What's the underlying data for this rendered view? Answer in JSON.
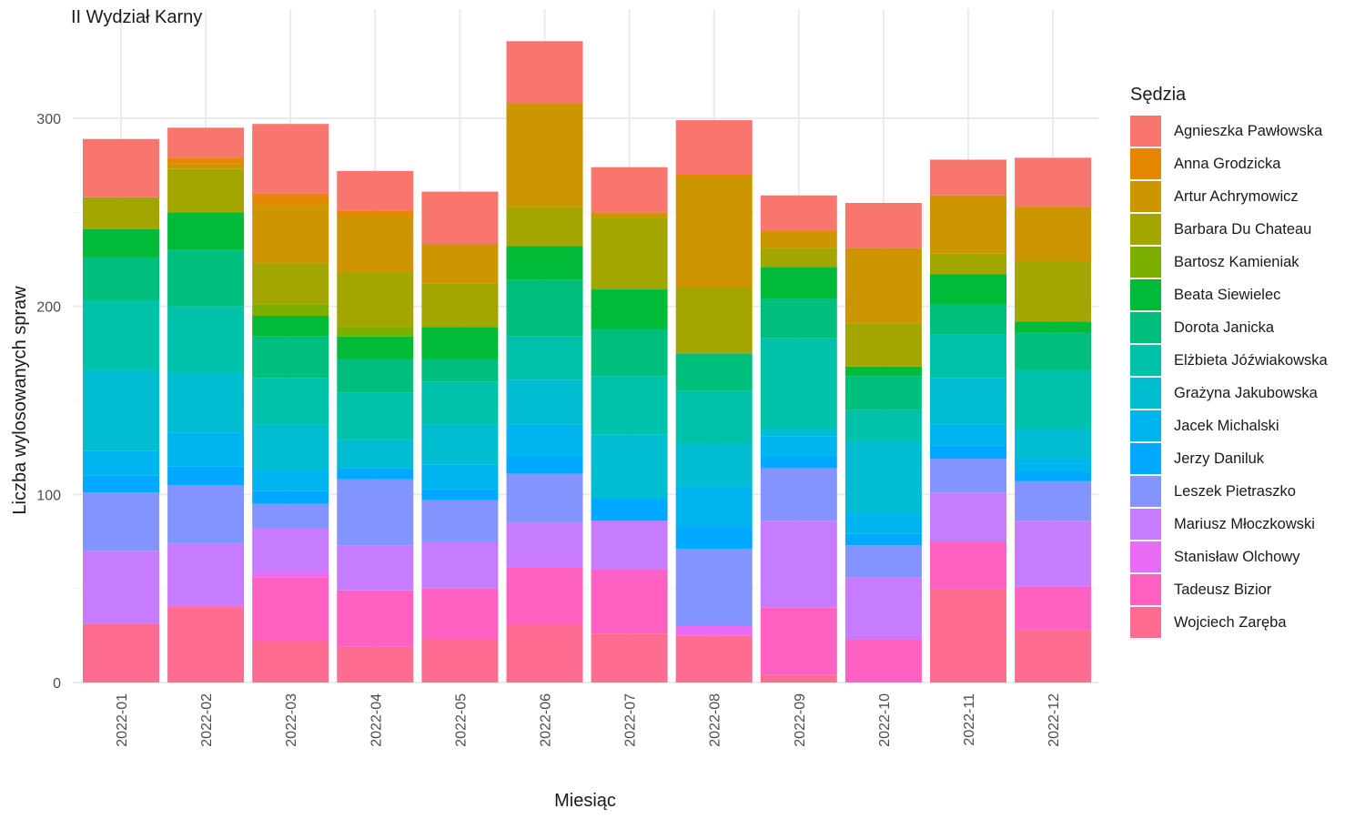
{
  "chart_data": {
    "type": "bar",
    "stacked": true,
    "title": "II Wydział Karny",
    "xlabel": "Miesiąc",
    "ylabel": "Liczba wylosowanych spraw",
    "legend_title": "Sędzia",
    "legend_position": "right",
    "grid": true,
    "ylim": [
      0,
      350
    ],
    "yticks": [
      0,
      100,
      200,
      300
    ],
    "categories": [
      "2022-01",
      "2022-02",
      "2022-03",
      "2022-04",
      "2022-05",
      "2022-06",
      "2022-07",
      "2022-08",
      "2022-09",
      "2022-10",
      "2022-11",
      "2022-12"
    ],
    "series": [
      {
        "name": "Wojciech Zaręba",
        "color": "#FF6C91",
        "values": [
          31,
          40,
          22,
          19,
          23,
          31,
          26,
          25,
          4,
          0,
          50,
          28
        ]
      },
      {
        "name": "Tadeusz Bizior",
        "color": "#FF61C3",
        "values": [
          0,
          1,
          34,
          30,
          27,
          30,
          34,
          0,
          36,
          23,
          25,
          23
        ]
      },
      {
        "name": "Stanisław Olchowy",
        "color": "#E76BF3",
        "values": [
          0,
          0,
          3,
          0,
          0,
          0,
          0,
          5,
          0,
          0,
          0,
          0
        ]
      },
      {
        "name": "Mariusz Młoczkowski",
        "color": "#C77CFF",
        "values": [
          39,
          33,
          23,
          24,
          25,
          24,
          26,
          0,
          46,
          33,
          26,
          35
        ]
      },
      {
        "name": "Leszek Pietraszko",
        "color": "#8494FF",
        "values": [
          31,
          31,
          13,
          35,
          22,
          26,
          0,
          41,
          28,
          17,
          18,
          21
        ]
      },
      {
        "name": "Jerzy Daniluk",
        "color": "#00A9FF",
        "values": [
          9,
          10,
          7,
          6,
          6,
          9,
          12,
          12,
          6,
          6,
          7,
          5
        ]
      },
      {
        "name": "Jacek Michalski",
        "color": "#00B4EF",
        "values": [
          13,
          18,
          11,
          0,
          13,
          17,
          0,
          21,
          11,
          11,
          11,
          7
        ]
      },
      {
        "name": "Grażyna Jakubowska",
        "color": "#00BDD2",
        "values": [
          43,
          32,
          24,
          15,
          21,
          24,
          34,
          23,
          4,
          38,
          25,
          16
        ]
      },
      {
        "name": "Elżbieta Jóźwiakowska",
        "color": "#00C1A9",
        "values": [
          37,
          35,
          25,
          25,
          23,
          23,
          31,
          28,
          48,
          17,
          23,
          31
        ]
      },
      {
        "name": "Dorota Janicka",
        "color": "#00BF7D",
        "values": [
          23,
          30,
          22,
          18,
          12,
          30,
          25,
          20,
          21,
          18,
          16,
          20
        ]
      },
      {
        "name": "Beata Siewielec",
        "color": "#00BA38",
        "values": [
          15,
          20,
          11,
          12,
          17,
          18,
          21,
          0,
          17,
          5,
          16,
          6
        ]
      },
      {
        "name": "Bartosz Kamieniak",
        "color": "#7CAE00",
        "values": [
          0,
          0,
          6,
          5,
          0,
          0,
          0,
          0,
          0,
          0,
          0,
          0
        ]
      },
      {
        "name": "Barbara Du Chateau",
        "color": "#A3A500",
        "values": [
          17,
          23,
          22,
          29,
          23,
          21,
          38,
          35,
          10,
          23,
          11,
          32
        ]
      },
      {
        "name": "Artur Achrymowicz",
        "color": "#CD9600",
        "values": [
          0,
          3,
          31,
          30,
          21,
          55,
          3,
          59,
          9,
          40,
          31,
          29
        ]
      },
      {
        "name": "Anna Grodzicka",
        "color": "#E58700",
        "values": [
          0,
          3,
          6,
          3,
          0,
          0,
          0,
          1,
          0,
          0,
          0,
          0
        ]
      },
      {
        "name": "Agnieszka Pawłowska",
        "color": "#F8766D",
        "values": [
          31,
          16,
          37,
          21,
          28,
          33,
          24,
          29,
          19,
          24,
          19,
          26
        ]
      }
    ]
  },
  "legend_order": [
    "Agnieszka Pawłowska",
    "Anna Grodzicka",
    "Artur Achrymowicz",
    "Barbara Du Chateau",
    "Bartosz Kamieniak",
    "Beata Siewielec",
    "Dorota Janicka",
    "Elżbieta Jóźwiakowska",
    "Grażyna Jakubowska",
    "Jacek Michalski",
    "Jerzy Daniluk",
    "Leszek Pietraszko",
    "Mariusz Młoczkowski",
    "Stanisław Olchowy",
    "Tadeusz Bizior",
    "Wojciech Zaręba"
  ]
}
